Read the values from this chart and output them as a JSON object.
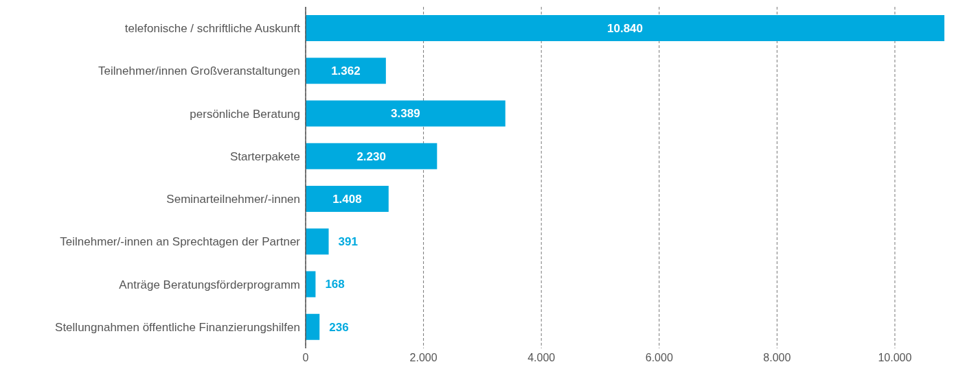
{
  "chart_data": {
    "type": "bar",
    "orientation": "horizontal",
    "categories": [
      "telefonische / schriftliche Auskunft",
      "Teilnehmer/innen Großveranstaltungen",
      "persönliche Beratung",
      "Starterpakete",
      "Seminarteilnehmer/-innen",
      "Teilnehmer/-innen an Sprechtagen der Partner",
      "Anträge Beratungsförderprogramm",
      "Stellungnahmen öffentliche Finanzierungshilfen"
    ],
    "values": [
      10840,
      1362,
      3389,
      2230,
      1408,
      391,
      168,
      236
    ],
    "value_labels": [
      "10.840",
      "1.362",
      "3.389",
      "2.230",
      "1.408",
      "391",
      "168",
      "236"
    ],
    "color": "#00aadf",
    "xlim": [
      0,
      10840
    ],
    "xticks": [
      0,
      {
        "value": 2000,
        "label": "2.000"
      },
      {
        "value": 4000,
        "label": "4.000"
      },
      {
        "value": 6000,
        "label": "6.000"
      },
      {
        "value": 8000,
        "label": "8.000"
      },
      {
        "value": 10000,
        "label": "10.000"
      }
    ],
    "grid": "x"
  }
}
